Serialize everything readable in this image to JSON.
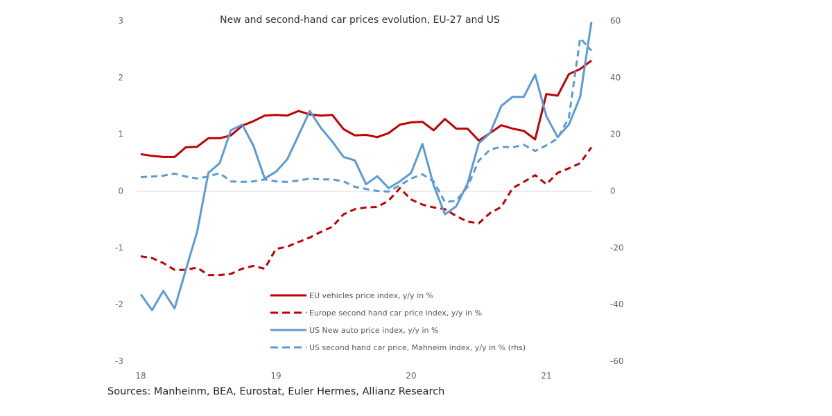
{
  "chart_data": {
    "type": "line",
    "title": "New and second-hand car prices evolution, EU-27 and US",
    "x": [
      "2018-01",
      "2018-02",
      "2018-03",
      "2018-04",
      "2018-05",
      "2018-06",
      "2018-07",
      "2018-08",
      "2018-09",
      "2018-10",
      "2018-11",
      "2018-12",
      "2019-01",
      "2019-02",
      "2019-03",
      "2019-04",
      "2019-05",
      "2019-06",
      "2019-07",
      "2019-08",
      "2019-09",
      "2019-10",
      "2019-11",
      "2019-12",
      "2020-01",
      "2020-02",
      "2020-03",
      "2020-04",
      "2020-05",
      "2020-06",
      "2020-07",
      "2020-08",
      "2020-09",
      "2020-10",
      "2020-11",
      "2020-12",
      "2021-01",
      "2021-02",
      "2021-03",
      "2021-04",
      "2021-05"
    ],
    "x_tick_labels": [
      "18",
      "19",
      "20",
      "21"
    ],
    "y_left": {
      "range": [
        -3,
        3
      ],
      "ticks": [
        "-3",
        "-2",
        "-1",
        "0",
        "1",
        "2",
        "3"
      ]
    },
    "y_right": {
      "range": [
        -60,
        60
      ],
      "ticks": [
        "-60",
        "-40",
        "-20",
        "0",
        "20",
        "40",
        "60"
      ]
    },
    "grid": false,
    "legend_position": "bottom-right",
    "series": [
      {
        "name": "EU vehicles price index, y/y in %",
        "axis": "left",
        "color": "#c00000",
        "style": "solid",
        "values": [
          0.65,
          0.62,
          0.6,
          0.6,
          0.77,
          0.78,
          0.93,
          0.93,
          0.98,
          1.15,
          1.23,
          1.33,
          1.34,
          1.33,
          1.41,
          1.35,
          1.33,
          1.34,
          1.09,
          0.98,
          0.99,
          0.95,
          1.02,
          1.17,
          1.21,
          1.22,
          1.07,
          1.27,
          1.1,
          1.1,
          0.89,
          1.02,
          1.16,
          1.1,
          1.06,
          0.91,
          1.71,
          1.68,
          2.06,
          2.15,
          2.3
        ]
      },
      {
        "name": "Europe second hand car price index, y/y in %",
        "axis": "left",
        "color": "#c00000",
        "style": "dashed",
        "values": [
          -1.15,
          -1.18,
          -1.27,
          -1.39,
          -1.39,
          -1.35,
          -1.48,
          -1.48,
          -1.46,
          -1.37,
          -1.32,
          -1.37,
          -1.02,
          -0.98,
          -0.9,
          -0.82,
          -0.72,
          -0.63,
          -0.41,
          -0.32,
          -0.29,
          -0.28,
          -0.17,
          0.05,
          -0.15,
          -0.24,
          -0.29,
          -0.32,
          -0.44,
          -0.54,
          -0.57,
          -0.39,
          -0.28,
          0.05,
          0.16,
          0.28,
          0.12,
          0.32,
          0.4,
          0.49,
          0.77
        ]
      },
      {
        "name": "US New auto price index, y/y in %",
        "axis": "left",
        "color": "#5b9bd5",
        "style": "solid",
        "values": [
          -1.82,
          -2.1,
          -1.76,
          -2.07,
          -1.39,
          -0.72,
          0.32,
          0.49,
          1.07,
          1.17,
          0.8,
          0.22,
          0.34,
          0.56,
          0.98,
          1.41,
          1.11,
          0.87,
          0.6,
          0.54,
          0.12,
          0.26,
          0.05,
          0.17,
          0.32,
          0.83,
          0.1,
          -0.41,
          -0.27,
          0.13,
          0.84,
          1.02,
          1.5,
          1.66,
          1.66,
          2.05,
          1.32,
          0.95,
          1.17,
          1.66,
          2.98
        ]
      },
      {
        "name": "US second hand car price, Mahneim index, y/y in % (rhs)",
        "axis": "right",
        "color": "#5b9bd5",
        "style": "dashed",
        "values": [
          4.9,
          5.1,
          5.4,
          6.1,
          5.1,
          4.4,
          5.1,
          6.3,
          3.4,
          3.2,
          3.4,
          4.1,
          3.4,
          3.2,
          3.7,
          4.4,
          4.1,
          4.1,
          3.4,
          1.5,
          0.7,
          0.0,
          -0.2,
          2.0,
          4.4,
          5.9,
          3.4,
          -3.9,
          -3.4,
          1.5,
          10.7,
          14.6,
          15.6,
          15.4,
          16.3,
          14.1,
          16.1,
          18.5,
          25.9,
          53.9,
          49.5
        ]
      }
    ]
  },
  "source": "Sources: Manheinm, BEA, Eurostat, Euler Hermes, Allianz Research"
}
